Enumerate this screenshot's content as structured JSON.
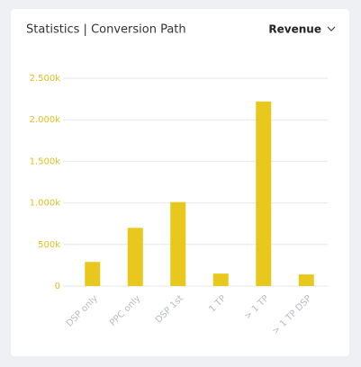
{
  "chart_data": {
    "type": "bar",
    "title": "Statistics | Conversion Path",
    "dropdown": "Revenue",
    "categories": [
      "DSP only",
      "PPC only",
      "DSP 1st",
      "1 TP",
      "> 1 TP",
      "> 1 TP DSP"
    ],
    "values": [
      290000,
      700000,
      1010000,
      150000,
      2220000,
      140000
    ],
    "color": "#e8c81c",
    "ylim": [
      0,
      2500000
    ],
    "yticks": [
      0,
      {
        "value": 500000,
        "label": "500k"
      },
      {
        "value": 1000000,
        "label": "1.000k"
      },
      {
        "value": 1500000,
        "label": "1.500k"
      },
      {
        "value": 2000000,
        "label": "2.000k"
      },
      {
        "value": 2500000,
        "label": "2.500k"
      }
    ],
    "grid": true
  }
}
